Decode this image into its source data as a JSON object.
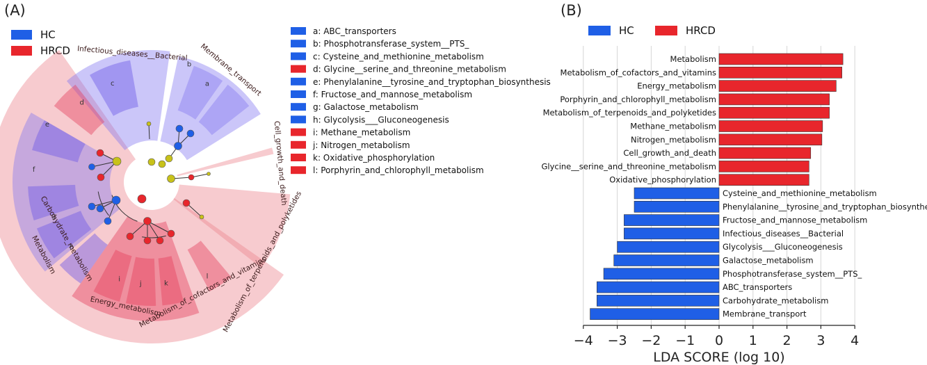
{
  "panel_a": {
    "label": "(A)",
    "legend": [
      {
        "name": "HC",
        "color": "#1f5fe6"
      },
      {
        "name": "HRCD",
        "color": "#e8262c"
      }
    ],
    "key": [
      {
        "letter": "a",
        "text": "a: ABC_transporters",
        "group": "HC"
      },
      {
        "letter": "b",
        "text": "b: Phosphotransferase_system__PTS_",
        "group": "HC"
      },
      {
        "letter": "c",
        "text": "c: Cysteine_and_methionine_metabolism",
        "group": "HC"
      },
      {
        "letter": "d",
        "text": "d: Glycine__serine_and_threonine_metabolism",
        "group": "HRCD"
      },
      {
        "letter": "e",
        "text": "e: Phenylalanine__tyrosine_and_tryptophan_biosynthesis",
        "group": "HC"
      },
      {
        "letter": "f",
        "text": "f: Fructose_and_mannose_metabolism",
        "group": "HC"
      },
      {
        "letter": "g",
        "text": "g: Galactose_metabolism",
        "group": "HC"
      },
      {
        "letter": "h",
        "text": "h: Glycolysis___Gluconeogenesis",
        "group": "HC"
      },
      {
        "letter": "i",
        "text": "i: Methane_metabolism",
        "group": "HRCD"
      },
      {
        "letter": "j",
        "text": "j: Nitrogen_metabolism",
        "group": "HRCD"
      },
      {
        "letter": "k",
        "text": "k: Oxidative_phosphorylation",
        "group": "HRCD"
      },
      {
        "letter": "l",
        "text": "l: Porphyrin_and_chlorophyll_metabolism",
        "group": "HRCD"
      }
    ],
    "clade_labels": [
      "Infectious_diseases__Bacterial",
      "Membrane_transport",
      "Cell_growth_and_death",
      "Metabolism_of_terpenoids_and_polyketides",
      "Metabolism_of_cofactors_and_vitamins",
      "Energy_metabolism",
      "Carbohydrate_metabolism",
      "Metabolism"
    ]
  },
  "panel_b": {
    "label": "(B)",
    "colors": {
      "HC": "#1f5fe6",
      "HRCD": "#e8262c"
    }
  },
  "chart_data": {
    "type": "bar",
    "orientation": "horizontal",
    "xlabel": "LDA SCORE (log 10)",
    "xlim": [
      -4,
      4
    ],
    "xticks": [
      "−4",
      "−3",
      "−2",
      "−1",
      "0",
      "1",
      "2",
      "3",
      "4"
    ],
    "legend": [
      "HC",
      "HRCD"
    ],
    "legend_position": "top",
    "grid": "vertical",
    "categories": [
      "Metabolism",
      "Metabolism_of_cofactors_and_vitamins",
      "Energy_metabolism",
      "Porphyrin_and_chlorophyll_metabolism",
      "Metabolism_of_terpenoids_and_polyketides",
      "Methane_metabolism",
      "Nitrogen_metabolism",
      "Cell_growth_and_death",
      "Glycine__serine_and_threonine_metabolism",
      "Oxidative_phosphorylation",
      "Cysteine_and_methionine_metabolism",
      "Phenylalanine__tyrosine_and_tryptophan_biosynthesis",
      "Fructose_and_mannose_metabolism",
      "Infectious_diseases__Bacterial",
      "Glycolysis___Gluconeogenesis",
      "Galactose_metabolism",
      "Phosphotransferase_system__PTS_",
      "ABC_transporters",
      "Carbohydrate_metabolism",
      "Membrane_transport"
    ],
    "values": [
      3.65,
      3.62,
      3.45,
      3.25,
      3.25,
      3.05,
      3.03,
      2.7,
      2.65,
      2.65,
      -2.5,
      -2.5,
      -2.8,
      -2.8,
      -3.0,
      -3.1,
      -3.4,
      -3.6,
      -3.6,
      -3.8
    ],
    "groups": [
      "HRCD",
      "HRCD",
      "HRCD",
      "HRCD",
      "HRCD",
      "HRCD",
      "HRCD",
      "HRCD",
      "HRCD",
      "HRCD",
      "HC",
      "HC",
      "HC",
      "HC",
      "HC",
      "HC",
      "HC",
      "HC",
      "HC",
      "HC"
    ]
  }
}
